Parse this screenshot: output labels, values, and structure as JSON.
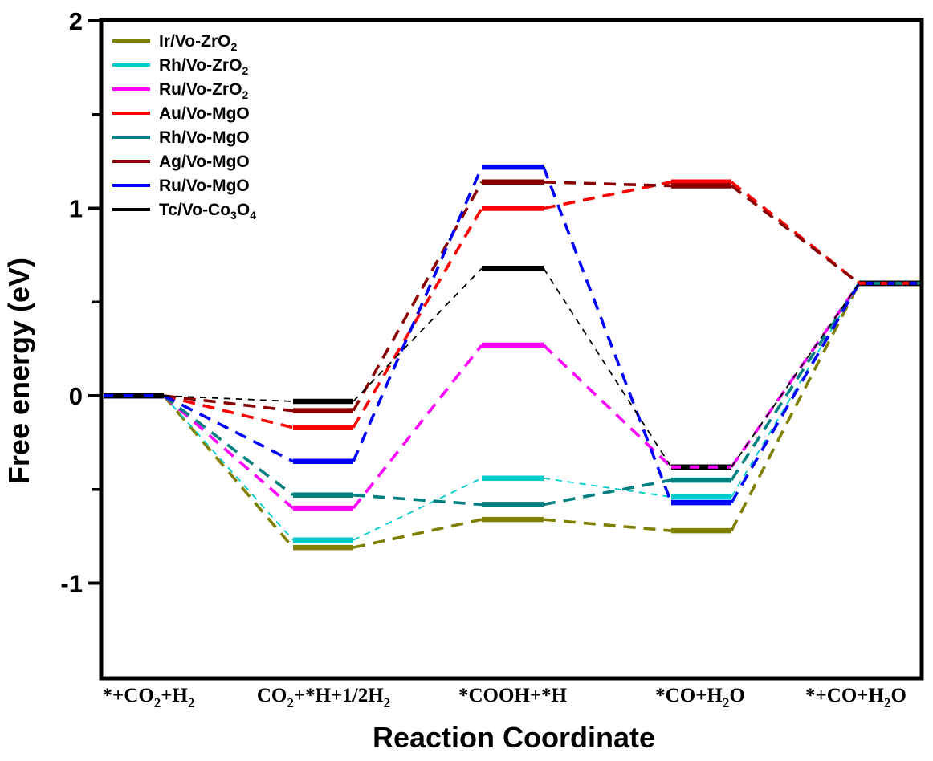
{
  "figure": {
    "y_axis": {
      "label": "Free energy (eV)",
      "tick_labels": [
        "2",
        "1",
        "0",
        "-1"
      ]
    },
    "x_axis": {
      "label": "Reaction Coordinate"
    },
    "legend_entries": [
      "Ir/Vo-ZrO2",
      "Rh/Vo-ZrO2",
      "Ru/Vo-ZrO2",
      "Au/Vo-MgO",
      "Rh/Vo-MgO",
      "Ag/Vo-MgO",
      "Ru/Vo-MgO",
      "Tc/Vo-Co3O4"
    ]
  },
  "chart_data": {
    "type": "line",
    "variant": "free-energy-level-diagram",
    "title": "",
    "xlabel": "Reaction Coordinate",
    "ylabel": "Free energy (eV)",
    "ylim": [
      -1.5,
      2
    ],
    "yticks_major": [
      2,
      1,
      0,
      -1
    ],
    "yticks_minor": [
      1.5,
      0.5,
      -0.5
    ],
    "grid": false,
    "legend_position": "top-left",
    "categories": [
      "*+CO2+H2",
      "CO2+*H+1/2H2",
      "*COOH+*H",
      "*CO+H2O",
      "*+CO+H2O"
    ],
    "series": [
      {
        "name": "Ir/Vo-ZrO2",
        "color": "#808000",
        "line_weight": "thick",
        "values": [
          0,
          -0.81,
          -0.66,
          -0.72,
          0.6
        ]
      },
      {
        "name": "Rh/Vo-ZrO2",
        "color": "#00CCCC",
        "line_weight": "thin",
        "values": [
          0,
          -0.77,
          -0.44,
          -0.54,
          0.6
        ]
      },
      {
        "name": "Ru/Vo-ZrO2",
        "color": "#FF00FF",
        "line_weight": "thick",
        "values": [
          0,
          -0.6,
          0.27,
          -0.38,
          0.6
        ]
      },
      {
        "name": "Au/Vo-MgO",
        "color": "#FF0000",
        "line_weight": "thick",
        "values": [
          0,
          -0.17,
          1.0,
          1.14,
          0.6
        ]
      },
      {
        "name": "Rh/Vo-MgO",
        "color": "#008080",
        "line_weight": "thick",
        "values": [
          0,
          -0.53,
          -0.58,
          -0.45,
          0.6
        ]
      },
      {
        "name": "Ag/Vo-MgO",
        "color": "#8B0000",
        "line_weight": "thick",
        "values": [
          0,
          -0.08,
          1.14,
          1.12,
          0.6
        ]
      },
      {
        "name": "Ru/Vo-MgO",
        "color": "#0000FF",
        "line_weight": "thick",
        "values": [
          0,
          -0.35,
          1.22,
          -0.57,
          0.6
        ]
      },
      {
        "name": "Tc/Vo-Co3O4",
        "color": "#000000",
        "line_weight": "thin",
        "values": [
          0,
          -0.03,
          0.68,
          -0.38,
          0.6
        ]
      }
    ],
    "overlaps": {
      "state_1_all_series_at": 0,
      "state_4_Ru_ZrO2_equals_Tc": -0.38,
      "state_5_all_series_at": 0.6
    }
  }
}
